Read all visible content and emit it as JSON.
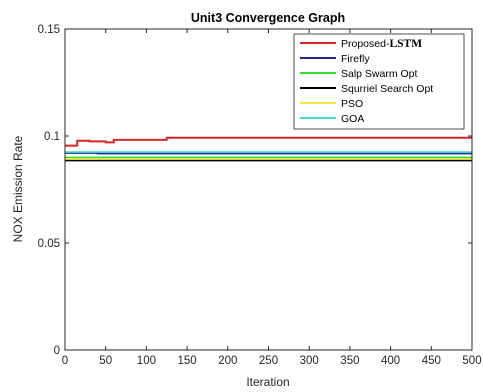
{
  "chart_data": {
    "type": "line",
    "title": "Unit3 Convergence Graph",
    "xlabel": "Iteration",
    "ylabel": "NOX Emission Rate",
    "xlim": [
      0,
      500
    ],
    "ylim": [
      0,
      0.15
    ],
    "x_ticks": [
      0,
      50,
      100,
      150,
      200,
      250,
      300,
      350,
      400,
      450,
      500
    ],
    "x_tick_labels": [
      "0",
      "50",
      "100",
      "150",
      "200",
      "250",
      "300",
      "350",
      "400",
      "450",
      "500"
    ],
    "y_ticks": [
      0,
      0.05,
      0.1,
      0.15
    ],
    "y_tick_labels": [
      "0",
      "0.05",
      "0.1",
      "0.15"
    ],
    "grid": false,
    "legend_position": "top-right",
    "series": [
      {
        "name": "Proposed-",
        "name_suffix": "LSTM",
        "color": "#d62728",
        "x": [
          0,
          15,
          15,
          30,
          30,
          50,
          50,
          60,
          60,
          125,
          125,
          500
        ],
        "y": [
          0.0955,
          0.0955,
          0.0978,
          0.0978,
          0.0975,
          0.0975,
          0.097,
          0.097,
          0.0982,
          0.0982,
          0.0992,
          0.0992
        ]
      },
      {
        "name": "Firefly",
        "color": "#1f2a8a",
        "x": [
          0,
          40,
          40,
          500
        ],
        "y": [
          0.092,
          0.092,
          0.0918,
          0.0918
        ]
      },
      {
        "name": "Salp Swarm Opt",
        "color": "#33dd33",
        "x": [
          0,
          500
        ],
        "y": [
          0.09,
          0.09
        ]
      },
      {
        "name": "Squrriel Search Opt",
        "color": "#000000",
        "x": [
          0,
          500
        ],
        "y": [
          0.0885,
          0.0885
        ]
      },
      {
        "name": "PSO",
        "color": "#f5e642",
        "x": [
          0,
          500
        ],
        "y": [
          0.0893,
          0.0893
        ]
      },
      {
        "name": "GOA",
        "color": "#3fd9d9",
        "x": [
          0,
          500
        ],
        "y": [
          0.0925,
          0.0925
        ]
      }
    ]
  }
}
